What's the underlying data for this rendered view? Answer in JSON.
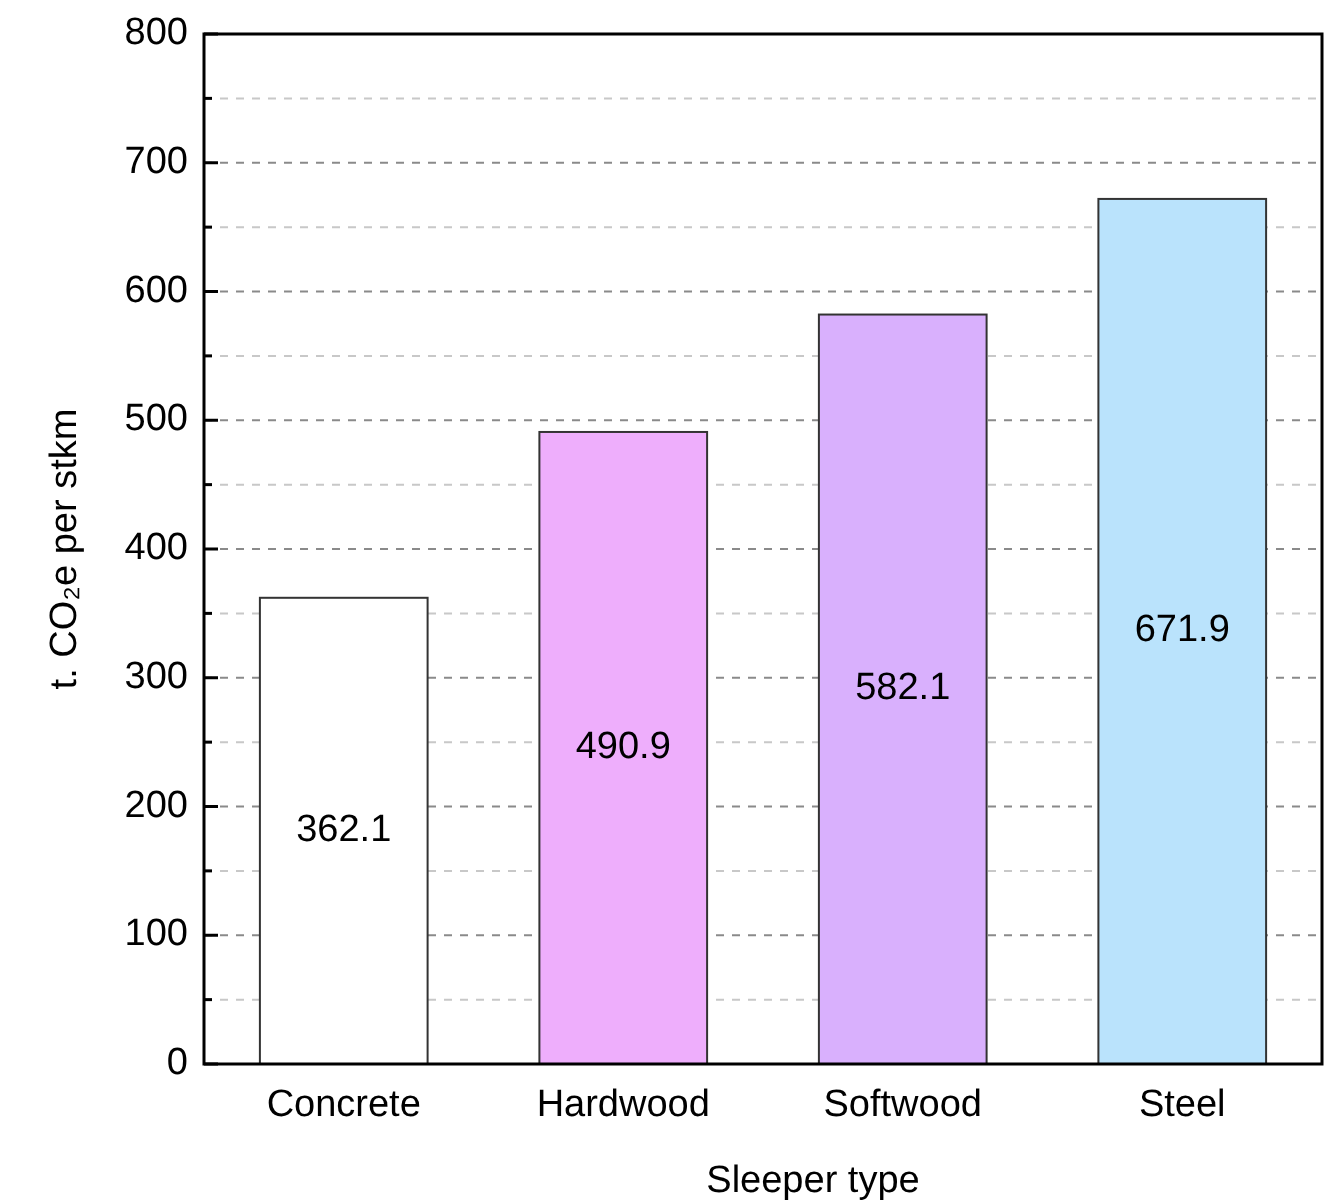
{
  "chart_data": {
    "type": "bar",
    "xlabel": "Sleeper type",
    "ylabel": "t. CO₂e per stkm",
    "categories": [
      "Concrete",
      "Hardwood",
      "Softwood",
      "Steel"
    ],
    "values": [
      362.1,
      490.9,
      582.1,
      671.9
    ],
    "colors": [
      "#ffffff",
      "#eeaefc",
      "#d9b0fd",
      "#bae3fc"
    ],
    "ylim": [
      0,
      800
    ],
    "yticks": [
      0,
      {
        "value": 50,
        "label": null
      },
      100,
      {
        "value": 150,
        "label": null
      },
      200,
      {
        "value": 250,
        "label": null
      },
      300,
      {
        "value": 350,
        "label": null
      },
      400,
      {
        "value": 450,
        "label": null
      },
      500,
      {
        "value": 550,
        "label": null
      },
      600,
      {
        "value": 650,
        "label": null
      },
      700,
      {
        "value": 750,
        "label": null
      },
      800
    ],
    "grid": true,
    "data_labels": true
  }
}
